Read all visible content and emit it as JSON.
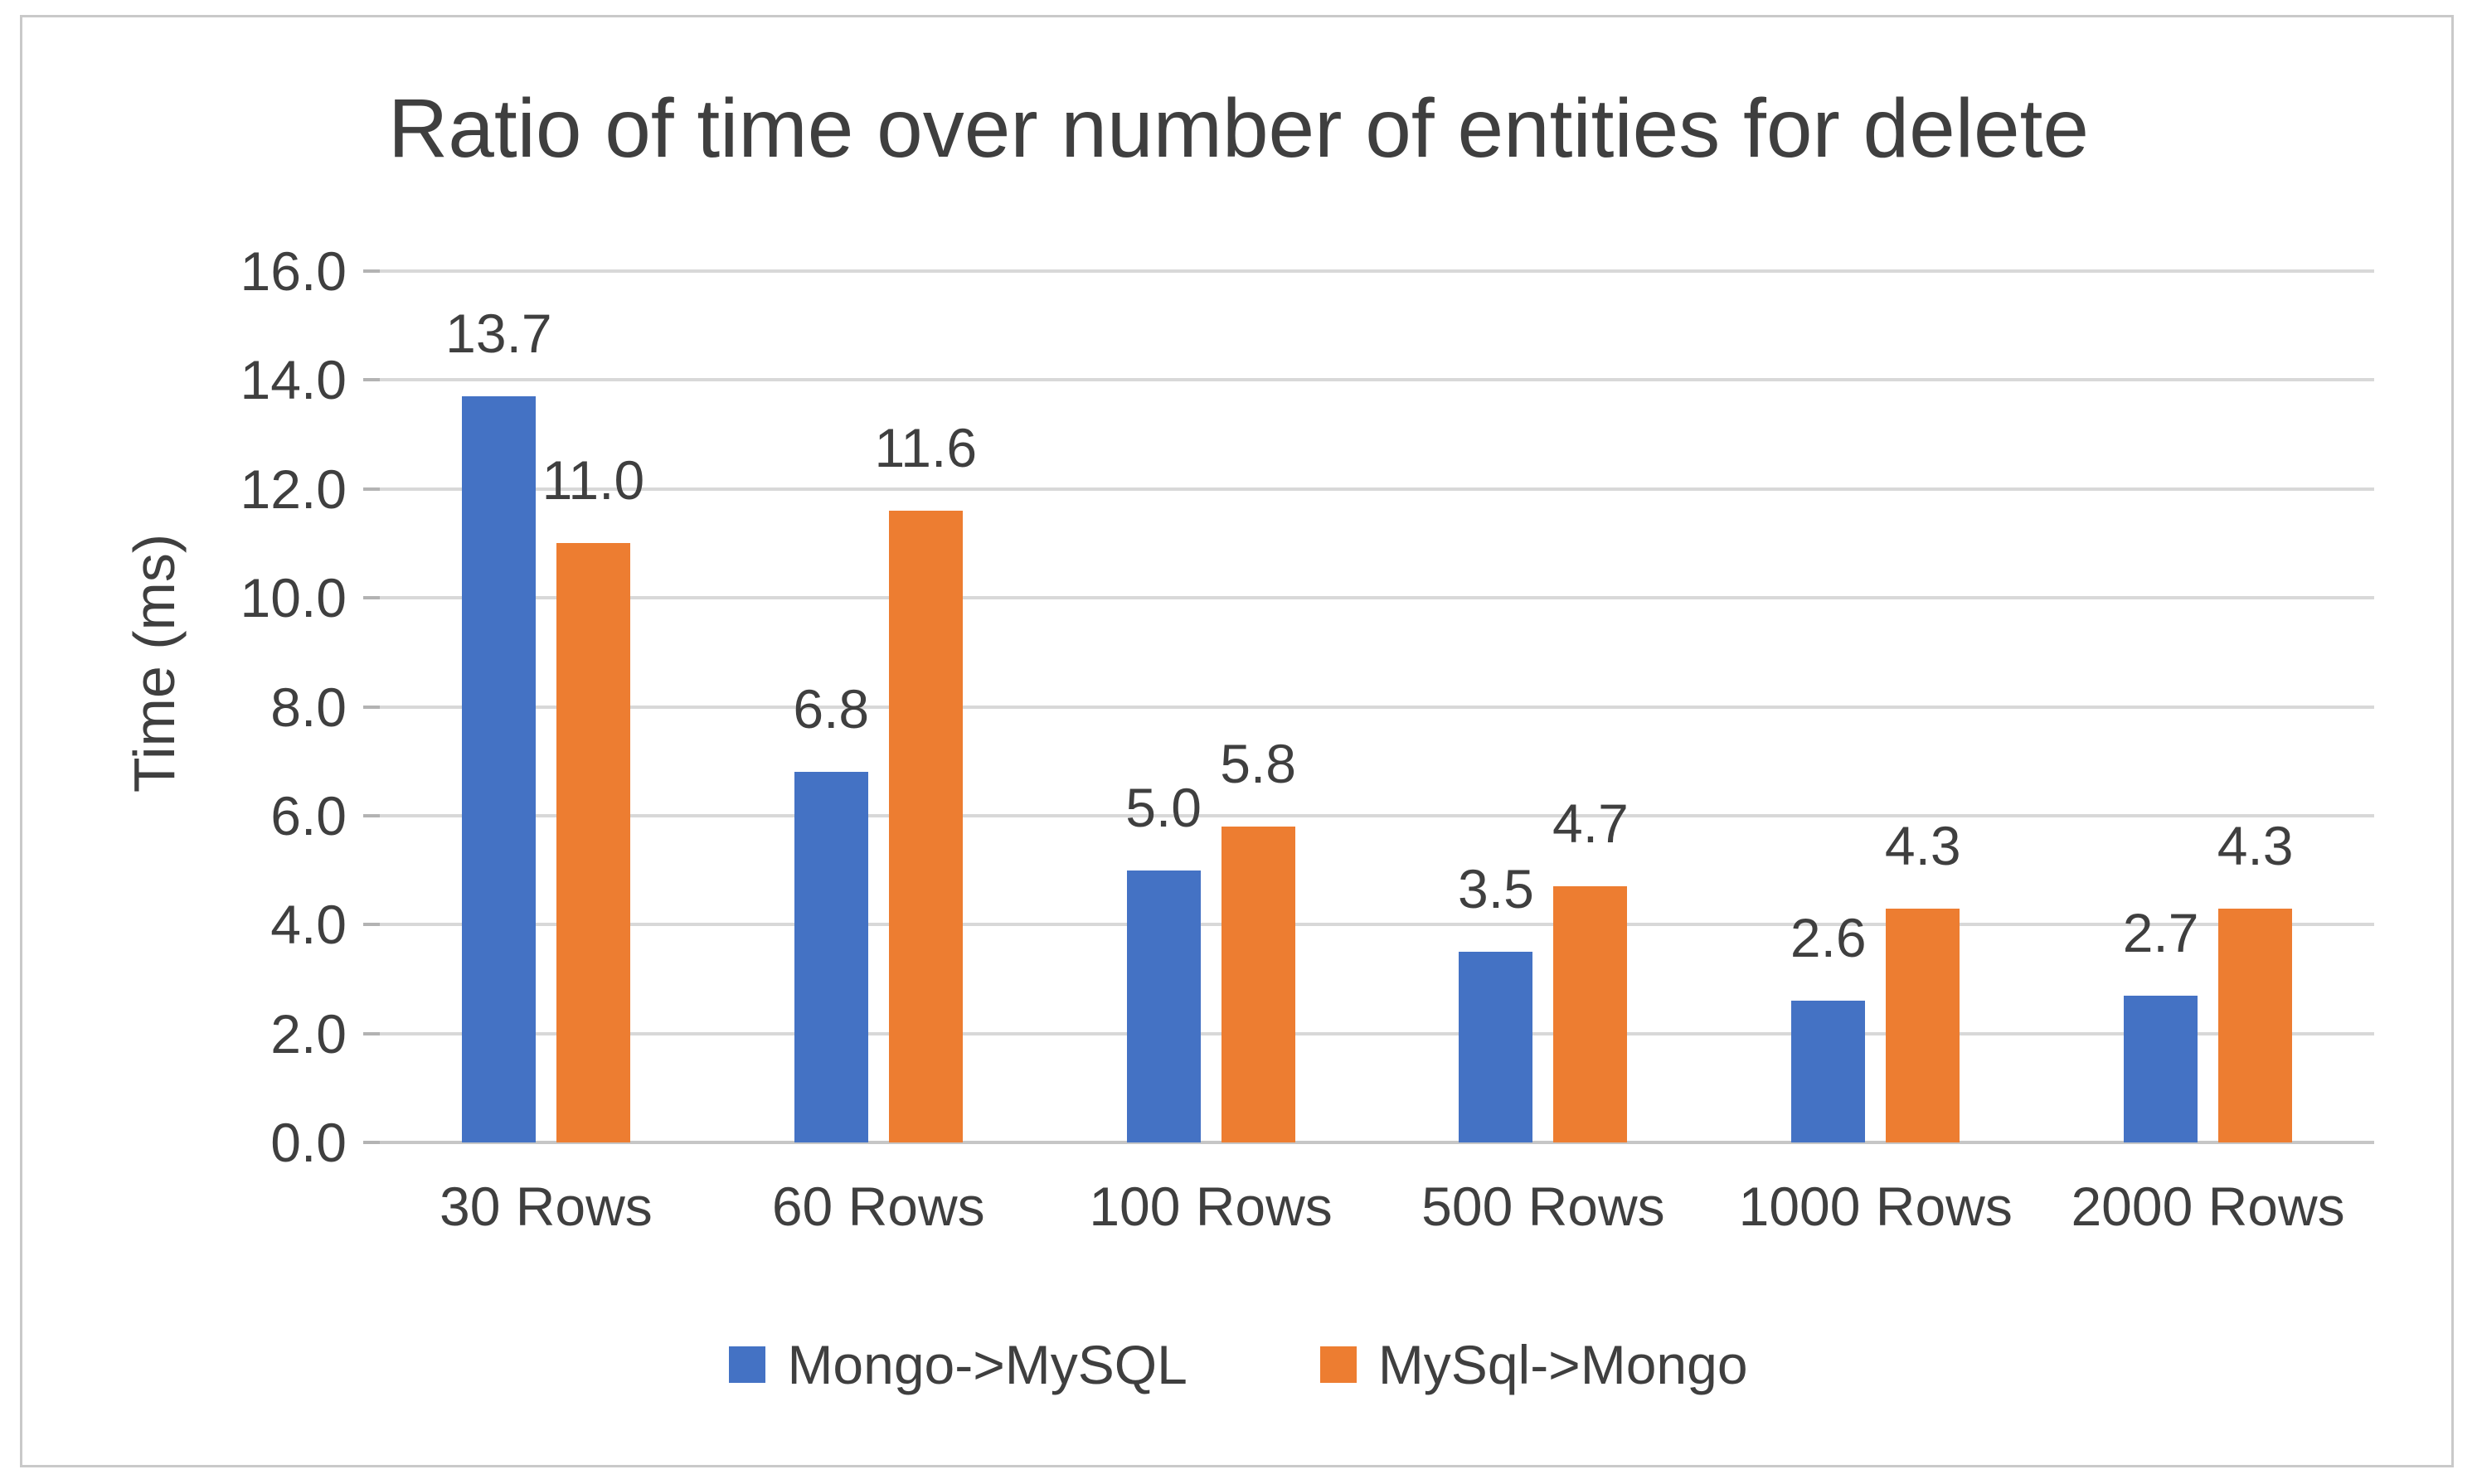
{
  "chart_data": {
    "type": "bar",
    "title": "Ratio of time over number of entities for delete",
    "ylabel": "Time (ms)",
    "xlabel": "",
    "categories": [
      "30 Rows",
      "60 Rows",
      "100 Rows",
      "500 Rows",
      "1000 Rows",
      "2000 Rows"
    ],
    "series": [
      {
        "name": "Mongo->MySQL",
        "color": "#4472C4",
        "values": [
          13.7,
          6.8,
          5.0,
          3.5,
          2.6,
          2.7
        ],
        "labels": [
          "13.7",
          "6.8",
          "5.0",
          "3.5",
          "2.6",
          "2.7"
        ]
      },
      {
        "name": "MySql->Mongo",
        "color": "#ED7D31",
        "values": [
          11.0,
          11.6,
          5.8,
          4.7,
          4.3,
          4.3
        ],
        "labels": [
          "11.0",
          "11.6",
          "5.8",
          "4.7",
          "4.3",
          "4.3"
        ]
      }
    ],
    "ylim": [
      0,
      16
    ],
    "ytick_step": 2,
    "ytick_labels": [
      "0.0",
      "2.0",
      "4.0",
      "6.0",
      "8.0",
      "10.0",
      "12.0",
      "14.0",
      "16.0"
    ],
    "grid": true,
    "legend_position": "bottom"
  },
  "colors": {
    "series_blue": "#4472C4",
    "series_orange": "#ED7D31",
    "gridline": "#D8D8D8",
    "axis_baseline": "#C6C6C6",
    "tick": "#B3B3B3",
    "text": "#3F3F3F",
    "frame_border": "#C9C9C9"
  }
}
